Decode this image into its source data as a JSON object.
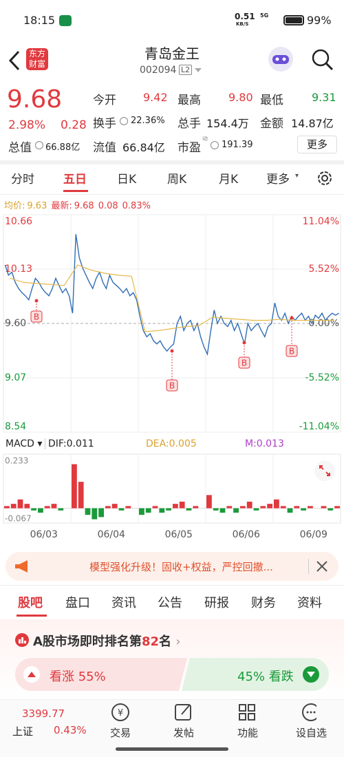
{
  "status_bar": {
    "time": "18:15",
    "net_speed": "0.51",
    "net_unit": "KB/S",
    "signal": "5G",
    "battery": "99%"
  },
  "header": {
    "logo_top": "东方",
    "logo_bottom": "财富",
    "title": "青岛金王",
    "code": "002094",
    "level": "L2"
  },
  "quote": {
    "price": "9.68",
    "change_pct": "2.98%",
    "change": "0.28",
    "fields": [
      {
        "label": "今开",
        "value": "9.42"
      },
      {
        "label": "最高",
        "value": "9.80"
      },
      {
        "label": "最低",
        "value": "9.31"
      },
      {
        "label": "换手",
        "value": "22.36%"
      },
      {
        "label": "总手",
        "value": "154.4万"
      },
      {
        "label": "金额",
        "value": "14.87亿"
      },
      {
        "label": "总值",
        "value": "66.88亿"
      },
      {
        "label": "流值",
        "value": "66.84亿"
      },
      {
        "label": "市盈",
        "value": "191.39"
      }
    ],
    "pe_mark": "动",
    "more": "更多"
  },
  "chart_tabs": [
    "分时",
    "五日",
    "日K",
    "周K",
    "月K",
    "更多"
  ],
  "info_line": {
    "avg_label": "均价:",
    "avg": "9.63",
    "latest_label": "最新:",
    "latest": "9.68",
    "latest_change": "0.08",
    "latest_pct": "0.83%"
  },
  "price_chart": {
    "type": "line",
    "categories": [
      "06/03",
      "06/04",
      "06/05",
      "06/06",
      "06/09"
    ],
    "ylim": [
      8.54,
      10.66
    ],
    "yticks": [
      10.66,
      10.13,
      {
        "value": 9.6,
        "label": "9.60"
      },
      9.07,
      8.54
    ],
    "y2lim": [
      -11.04,
      11.04
    ],
    "y2ticks": [
      {
        "value": 11.04,
        "label": "11.04%"
      },
      {
        "value": 5.52,
        "label": "5.52%"
      },
      {
        "value": 0,
        "label": "0.00%"
      },
      {
        "value": -5.52,
        "label": "-5.52%"
      },
      {
        "value": -11.04,
        "label": "-11.04%"
      }
    ],
    "series": [
      {
        "color": "#2f6db5",
        "values": [
          10.17,
          10.07,
          10.1,
          10.0,
          9.94,
          9.9,
          9.87,
          9.83,
          9.94,
          10.04,
          10.0,
          9.94,
          9.9,
          9.87,
          9.94,
          10.04,
          9.97,
          9.9,
          9.94,
          9.87,
          9.7,
          10.47,
          10.24,
          10.14,
          10.07,
          10.0,
          9.94,
          10.04,
          10.1,
          10.0,
          9.94,
          10.07,
          10.0,
          9.97,
          9.94,
          9.9,
          9.94,
          9.87,
          9.9,
          9.83,
          9.67,
          9.53,
          9.47,
          9.5,
          9.43,
          9.4,
          9.43,
          9.37,
          9.33,
          9.37,
          9.4,
          9.6,
          9.67,
          9.53,
          9.6,
          9.63,
          9.53,
          9.6,
          9.47,
          9.37,
          9.3,
          9.53,
          9.73,
          9.6,
          9.67,
          9.6,
          9.57,
          9.63,
          9.53,
          9.6,
          9.5,
          9.4,
          9.6,
          9.53,
          9.57,
          9.6,
          9.53,
          9.47,
          9.57,
          9.6,
          9.8,
          9.67,
          9.63,
          9.7,
          9.6,
          9.67,
          9.63,
          9.67,
          9.7,
          9.63,
          9.67,
          9.6,
          9.68,
          9.65,
          9.7,
          9.63,
          9.67,
          9.7,
          9.68,
          9.7
        ]
      },
      {
        "color": "#e8b84a",
        "values": [
          10.04,
          10.0,
          9.99,
          9.98,
          9.97,
          10.17,
          10.12,
          10.09,
          10.07,
          10.06,
          9.52,
          9.53,
          9.55,
          9.57,
          9.58,
          9.66,
          9.65,
          9.64,
          9.63,
          9.63,
          9.64,
          9.63,
          9.63,
          9.63,
          9.63
        ]
      }
    ],
    "signal_label": "B"
  },
  "macd": {
    "title": "MACD",
    "dif": "DIF:0.011",
    "dea": "DEA:0.005",
    "m": "M:0.013",
    "ylim": [
      -0.067,
      0.233
    ],
    "yticks": [
      0.233,
      -0.067
    ],
    "values": [
      0.01,
      0.02,
      0.04,
      0.02,
      -0.01,
      -0.02,
      0.01,
      0.02,
      -0.01,
      0.0,
      0.2,
      0.12,
      -0.03,
      -0.05,
      -0.04,
      0.01,
      0.02,
      -0.01,
      0.01,
      0.0,
      -0.03,
      -0.02,
      0.01,
      -0.02,
      -0.01,
      0.02,
      0.03,
      -0.01,
      0.01,
      0.0,
      0.06,
      -0.01,
      -0.02,
      0.01,
      -0.02,
      0.01,
      0.03,
      -0.01,
      0.01,
      0.02,
      0.04,
      0.01,
      -0.02,
      0.01,
      -0.01,
      0.01,
      0.0,
      0.01,
      -0.01,
      0.01
    ]
  },
  "banner": {
    "text": "模型强化升级！固收+权益，严控回撤..."
  },
  "content_tabs": [
    "股吧",
    "盘口",
    "资讯",
    "公告",
    "研报",
    "财务",
    "资料"
  ],
  "rank": {
    "prefix": "A股市场即时排名第",
    "number": "82",
    "suffix": "名"
  },
  "sentiment": {
    "bull_label": "看涨",
    "bull_pct": "55%",
    "bear_pct": "45%",
    "bear_label": "看跌"
  },
  "bottom_nav": {
    "index_value": "3399.77",
    "index_name": "上证",
    "index_pct": "0.43%",
    "items": [
      "交易",
      "发帖",
      "功能",
      "设自选"
    ]
  }
}
